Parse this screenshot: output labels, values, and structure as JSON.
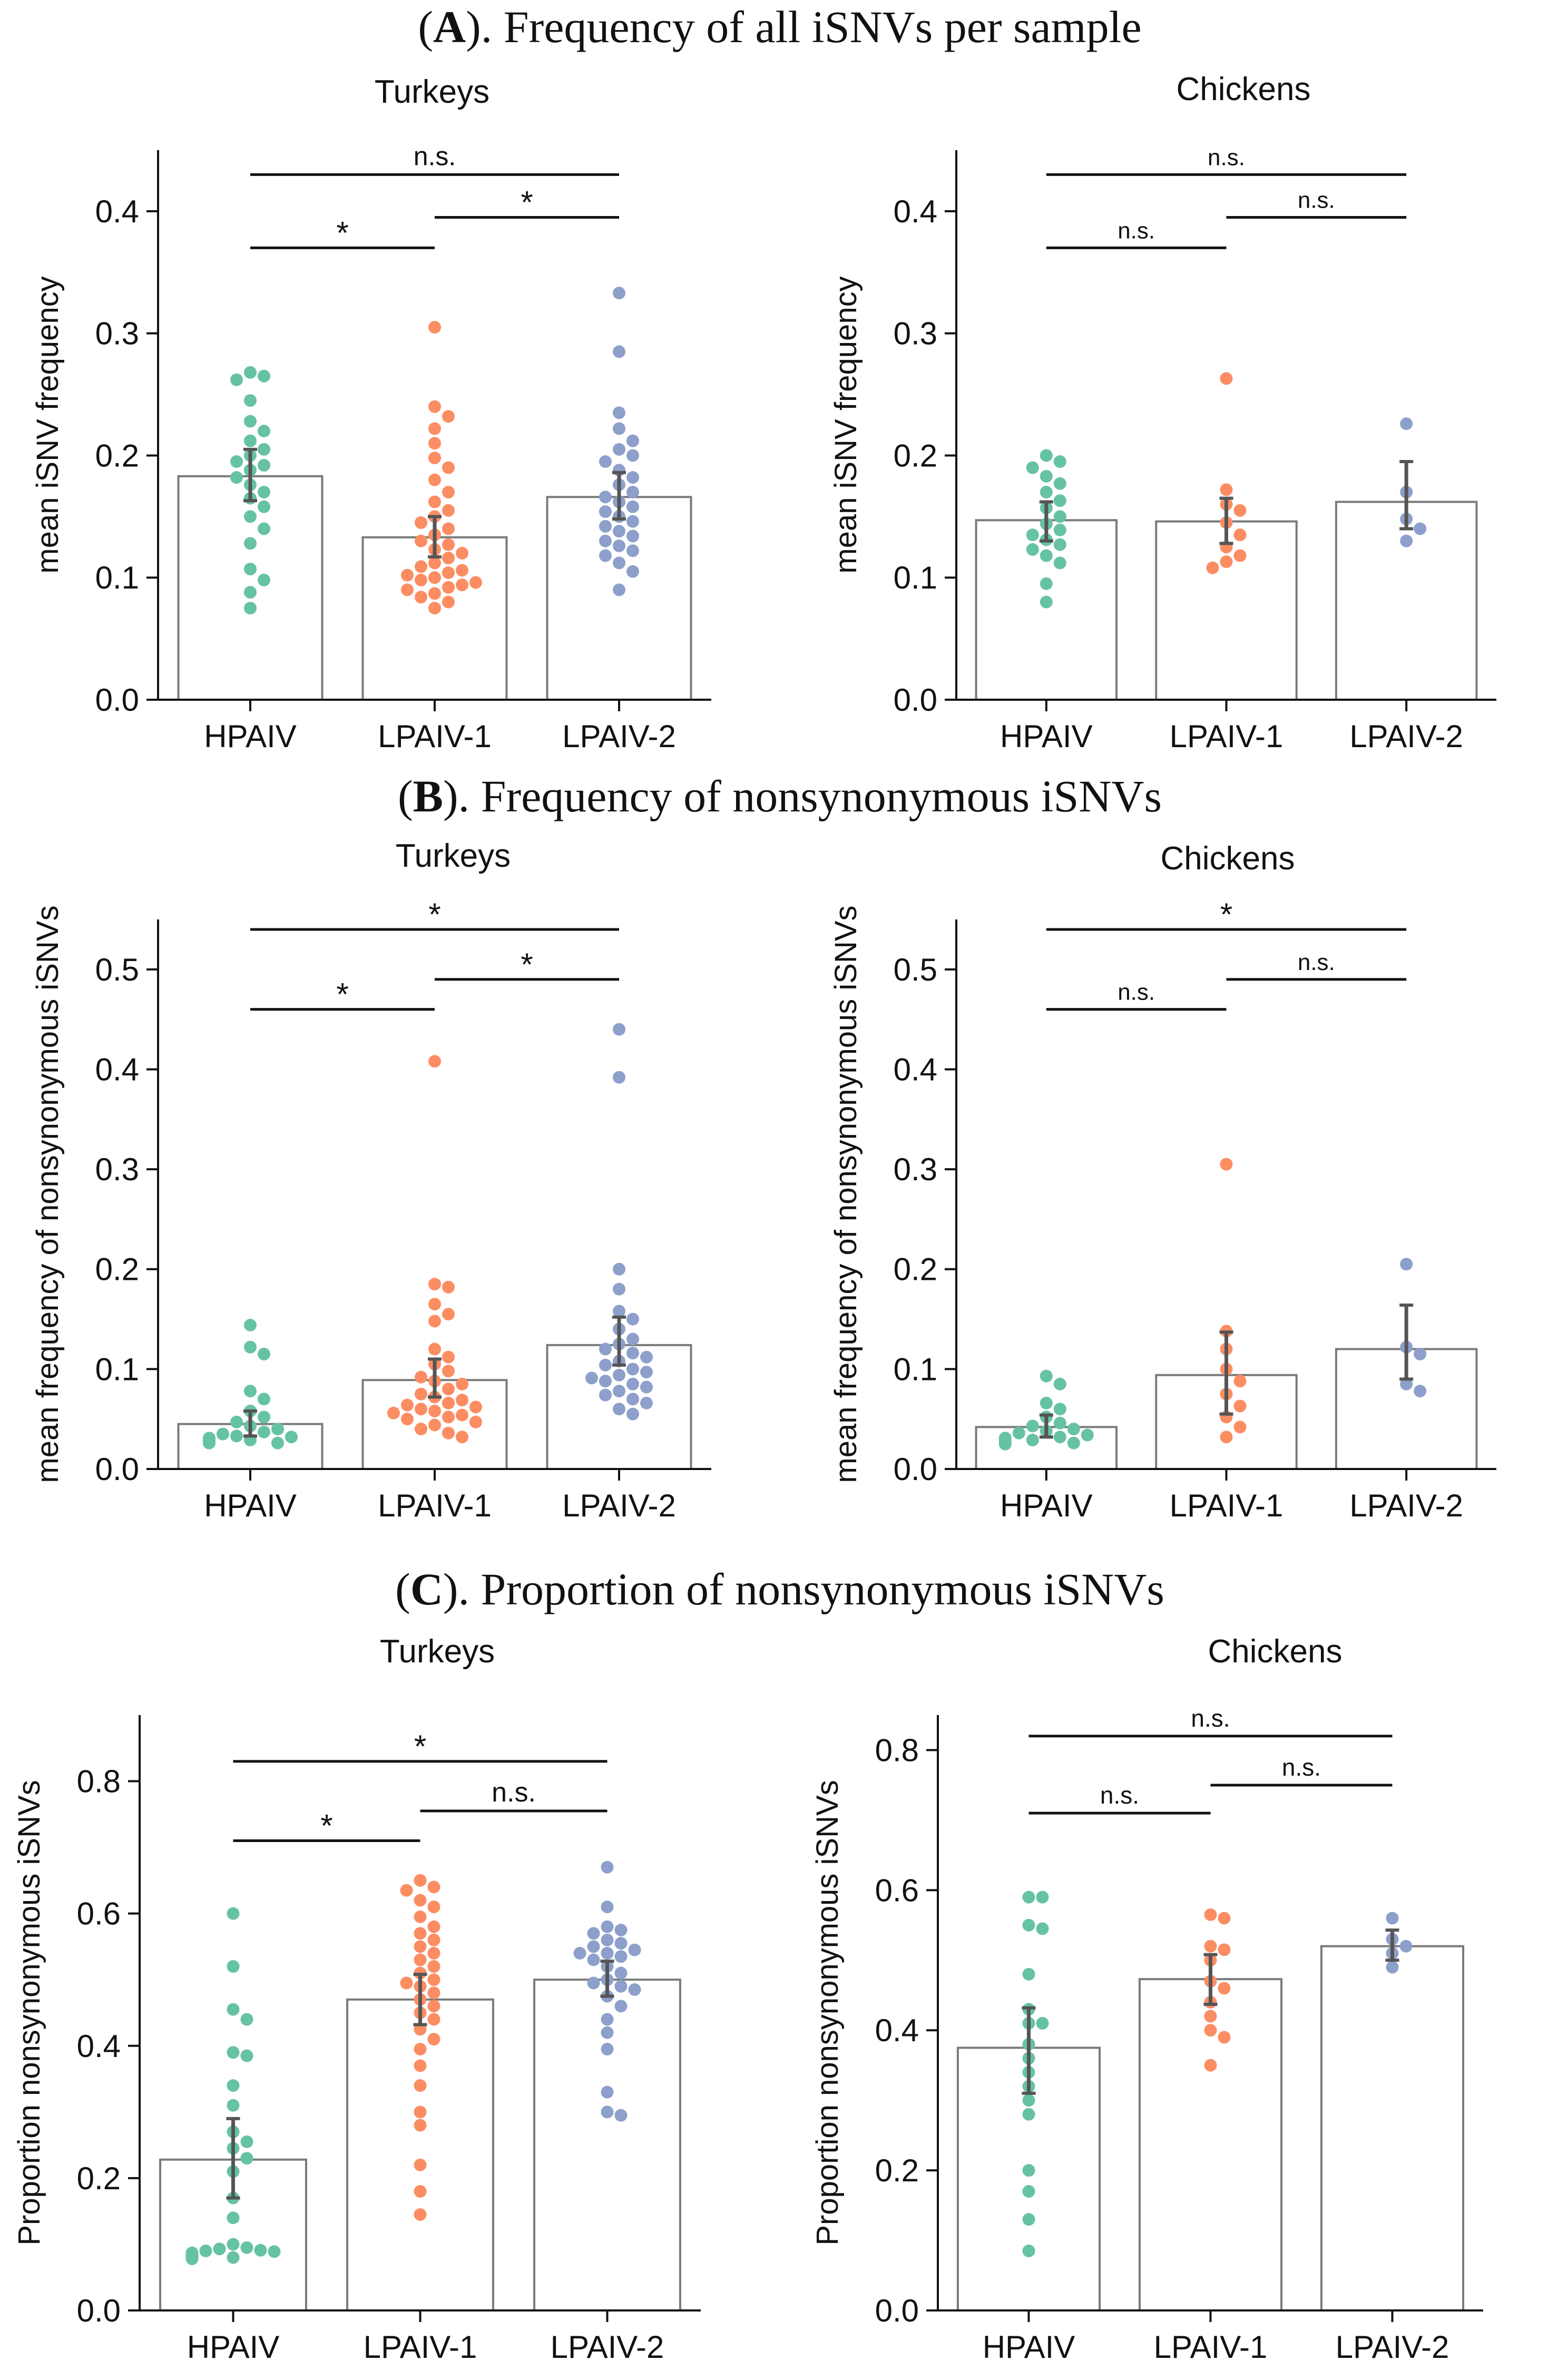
{
  "colors": {
    "HPAIV": "#66c2a5",
    "LPAIV-1": "#fc8d62",
    "LPAIV-2": "#8da0cb",
    "bar_edge": "#7a7a7a",
    "errorbar": "#555555",
    "axis": "#111111"
  },
  "sections": [
    {
      "letter": "A",
      "text": "). Frequency of all iSNVs per sample"
    },
    {
      "letter": "B",
      "text": "). Frequency of nonsynonymous iSNVs"
    },
    {
      "letter": "C",
      "text": "). Proportion of nonsynonymous iSNVs"
    }
  ],
  "chart_data": [
    {
      "type": "bar",
      "section": "A",
      "title": "Turkeys",
      "ylabel": "mean iSNV frequency",
      "ylim": [
        0,
        0.45
      ],
      "yticks": [
        0.0,
        0.1,
        0.2,
        0.3,
        0.4
      ],
      "tick_decimals": 1,
      "categories": [
        "HPAIV",
        "LPAIV-1",
        "LPAIV-2"
      ],
      "values": [
        0.183,
        0.133,
        0.166
      ],
      "errors": [
        [
          0.163,
          0.205
        ],
        [
          0.117,
          0.15
        ],
        [
          0.148,
          0.186
        ]
      ],
      "points": [
        [
          0.268,
          0.265,
          0.262,
          0.245,
          0.228,
          0.22,
          0.212,
          0.205,
          0.2,
          0.195,
          0.192,
          0.188,
          0.182,
          0.176,
          0.17,
          0.165,
          0.158,
          0.15,
          0.14,
          0.128,
          0.107,
          0.098,
          0.088,
          0.075
        ],
        [
          0.305,
          0.24,
          0.232,
          0.222,
          0.21,
          0.198,
          0.19,
          0.18,
          0.17,
          0.162,
          0.155,
          0.15,
          0.145,
          0.14,
          0.135,
          0.13,
          0.127,
          0.123,
          0.12,
          0.116,
          0.112,
          0.109,
          0.106,
          0.104,
          0.102,
          0.1,
          0.098,
          0.096,
          0.094,
          0.092,
          0.09,
          0.087,
          0.084,
          0.08,
          0.075
        ],
        [
          0.333,
          0.285,
          0.235,
          0.222,
          0.212,
          0.205,
          0.2,
          0.195,
          0.188,
          0.182,
          0.176,
          0.17,
          0.166,
          0.162,
          0.158,
          0.154,
          0.15,
          0.146,
          0.142,
          0.138,
          0.134,
          0.13,
          0.126,
          0.122,
          0.118,
          0.112,
          0.105,
          0.09
        ]
      ],
      "significance": [
        {
          "from": 0,
          "to": 2,
          "label": "n.s.",
          "y": 0.43
        },
        {
          "from": 1,
          "to": 2,
          "label": "*",
          "y": 0.395
        },
        {
          "from": 0,
          "to": 1,
          "label": "*",
          "y": 0.37
        }
      ]
    },
    {
      "type": "bar",
      "section": "A",
      "title": "Chickens",
      "ylabel": "mean iSNV frequency",
      "ylim": [
        0,
        0.45
      ],
      "yticks": [
        0.0,
        0.1,
        0.2,
        0.3,
        0.4
      ],
      "tick_decimals": 1,
      "categories": [
        "HPAIV",
        "LPAIV-1",
        "LPAIV-2"
      ],
      "values": [
        0.147,
        0.146,
        0.162
      ],
      "errors": [
        [
          0.13,
          0.162
        ],
        [
          0.128,
          0.165
        ],
        [
          0.14,
          0.195
        ]
      ],
      "points": [
        [
          0.2,
          0.195,
          0.19,
          0.183,
          0.177,
          0.17,
          0.163,
          0.157,
          0.15,
          0.144,
          0.139,
          0.135,
          0.131,
          0.127,
          0.123,
          0.118,
          0.112,
          0.095,
          0.08
        ],
        [
          0.263,
          0.172,
          0.16,
          0.155,
          0.145,
          0.135,
          0.125,
          0.118,
          0.113,
          0.108
        ],
        [
          0.226,
          0.17,
          0.148,
          0.14,
          0.13
        ]
      ],
      "significance": [
        {
          "from": 0,
          "to": 2,
          "label": "n.s.",
          "y": 0.43
        },
        {
          "from": 1,
          "to": 2,
          "label": "n.s.",
          "y": 0.395
        },
        {
          "from": 0,
          "to": 1,
          "label": "n.s.",
          "y": 0.37
        }
      ]
    },
    {
      "type": "bar",
      "section": "B",
      "title": "Turkeys",
      "ylabel": "mean frequency of nonsynonymous iSNVs",
      "ylim": [
        0,
        0.55
      ],
      "yticks": [
        0.0,
        0.1,
        0.2,
        0.3,
        0.4,
        0.5
      ],
      "tick_decimals": 1,
      "categories": [
        "HPAIV",
        "LPAIV-1",
        "LPAIV-2"
      ],
      "values": [
        0.045,
        0.089,
        0.124
      ],
      "errors": [
        [
          0.033,
          0.058
        ],
        [
          0.072,
          0.11
        ],
        [
          0.104,
          0.152
        ]
      ],
      "points": [
        [
          0.144,
          0.122,
          0.115,
          0.078,
          0.07,
          0.058,
          0.052,
          0.047,
          0.043,
          0.04,
          0.037,
          0.035,
          0.033,
          0.032,
          0.031,
          0.03,
          0.029,
          0.029,
          0.028,
          0.028,
          0.027,
          0.027,
          0.026,
          0.026
        ],
        [
          0.408,
          0.185,
          0.182,
          0.165,
          0.155,
          0.148,
          0.12,
          0.112,
          0.105,
          0.098,
          0.092,
          0.088,
          0.085,
          0.08,
          0.075,
          0.072,
          0.069,
          0.066,
          0.064,
          0.062,
          0.06,
          0.058,
          0.056,
          0.054,
          0.052,
          0.05,
          0.047,
          0.044,
          0.04,
          0.036,
          0.032
        ],
        [
          0.44,
          0.392,
          0.2,
          0.18,
          0.158,
          0.15,
          0.14,
          0.13,
          0.125,
          0.12,
          0.116,
          0.112,
          0.108,
          0.104,
          0.1,
          0.097,
          0.094,
          0.091,
          0.088,
          0.085,
          0.082,
          0.078,
          0.074,
          0.07,
          0.066,
          0.06,
          0.055
        ]
      ],
      "significance": [
        {
          "from": 0,
          "to": 2,
          "label": "*",
          "y": 0.54
        },
        {
          "from": 1,
          "to": 2,
          "label": "*",
          "y": 0.49
        },
        {
          "from": 0,
          "to": 1,
          "label": "*",
          "y": 0.46
        }
      ]
    },
    {
      "type": "bar",
      "section": "B",
      "title": "Chickens",
      "ylabel": "mean frequency of nonsynonymous iSNVs",
      "ylim": [
        0,
        0.55
      ],
      "yticks": [
        0.0,
        0.1,
        0.2,
        0.3,
        0.4,
        0.5
      ],
      "tick_decimals": 1,
      "categories": [
        "HPAIV",
        "LPAIV-1",
        "LPAIV-2"
      ],
      "values": [
        0.042,
        0.094,
        0.12
      ],
      "errors": [
        [
          0.032,
          0.054
        ],
        [
          0.055,
          0.137
        ],
        [
          0.09,
          0.164
        ]
      ],
      "points": [
        [
          0.093,
          0.085,
          0.066,
          0.06,
          0.052,
          0.046,
          0.043,
          0.04,
          0.038,
          0.036,
          0.034,
          0.032,
          0.031,
          0.03,
          0.029,
          0.028,
          0.027,
          0.026,
          0.025
        ],
        [
          0.305,
          0.138,
          0.12,
          0.1,
          0.088,
          0.075,
          0.063,
          0.052,
          0.042,
          0.032
        ],
        [
          0.205,
          0.122,
          0.115,
          0.085,
          0.078
        ]
      ],
      "significance": [
        {
          "from": 0,
          "to": 2,
          "label": "*",
          "y": 0.54
        },
        {
          "from": 1,
          "to": 2,
          "label": "n.s.",
          "y": 0.49
        },
        {
          "from": 0,
          "to": 1,
          "label": "n.s.",
          "y": 0.46
        }
      ]
    },
    {
      "type": "bar",
      "section": "C",
      "title": "Turkeys",
      "ylabel": "Proportion nonsynonymous iSNVs",
      "ylim": [
        0,
        0.9
      ],
      "yticks": [
        0.0,
        0.2,
        0.4,
        0.6,
        0.8
      ],
      "tick_decimals": 1,
      "categories": [
        "HPAIV",
        "LPAIV-1",
        "LPAIV-2"
      ],
      "values": [
        0.228,
        0.47,
        0.5
      ],
      "errors": [
        [
          0.17,
          0.29
        ],
        [
          0.432,
          0.508
        ],
        [
          0.475,
          0.528
        ]
      ],
      "points": [
        [
          0.6,
          0.52,
          0.455,
          0.44,
          0.39,
          0.385,
          0.34,
          0.31,
          0.27,
          0.255,
          0.245,
          0.23,
          0.21,
          0.17,
          0.14,
          0.1,
          0.095,
          0.093,
          0.091,
          0.09,
          0.089,
          0.087,
          0.085,
          0.082,
          0.08,
          0.078
        ],
        [
          0.65,
          0.64,
          0.635,
          0.62,
          0.61,
          0.595,
          0.58,
          0.57,
          0.56,
          0.55,
          0.54,
          0.53,
          0.52,
          0.51,
          0.5,
          0.495,
          0.49,
          0.48,
          0.47,
          0.46,
          0.45,
          0.44,
          0.425,
          0.41,
          0.395,
          0.37,
          0.34,
          0.3,
          0.28,
          0.22,
          0.18,
          0.145
        ],
        [
          0.67,
          0.61,
          0.58,
          0.575,
          0.57,
          0.56,
          0.555,
          0.55,
          0.545,
          0.54,
          0.54,
          0.535,
          0.53,
          0.52,
          0.51,
          0.5,
          0.495,
          0.49,
          0.485,
          0.475,
          0.46,
          0.44,
          0.42,
          0.395,
          0.33,
          0.3,
          0.295
        ]
      ],
      "significance": [
        {
          "from": 0,
          "to": 2,
          "label": "*",
          "y": 0.83
        },
        {
          "from": 1,
          "to": 2,
          "label": "n.s.",
          "y": 0.755
        },
        {
          "from": 0,
          "to": 1,
          "label": "*",
          "y": 0.71
        }
      ]
    },
    {
      "type": "bar",
      "section": "C",
      "title": "Chickens",
      "ylabel": "Proportion nonsynonymous iSNVs",
      "ylim": [
        0,
        0.85
      ],
      "yticks": [
        0.0,
        0.2,
        0.4,
        0.6,
        0.8
      ],
      "tick_decimals": 1,
      "categories": [
        "HPAIV",
        "LPAIV-1",
        "LPAIV-2"
      ],
      "values": [
        0.375,
        0.473,
        0.52
      ],
      "errors": [
        [
          0.31,
          0.432
        ],
        [
          0.437,
          0.508
        ],
        [
          0.5,
          0.543
        ]
      ],
      "points": [
        [
          0.59,
          0.59,
          0.55,
          0.545,
          0.48,
          0.43,
          0.41,
          0.41,
          0.38,
          0.36,
          0.34,
          0.32,
          0.3,
          0.28,
          0.2,
          0.17,
          0.13,
          0.085
        ],
        [
          0.565,
          0.56,
          0.52,
          0.515,
          0.5,
          0.47,
          0.46,
          0.44,
          0.42,
          0.4,
          0.39,
          0.35
        ],
        [
          0.56,
          0.53,
          0.52,
          0.51,
          0.49
        ]
      ],
      "significance": [
        {
          "from": 0,
          "to": 2,
          "label": "n.s.",
          "y": 0.82
        },
        {
          "from": 1,
          "to": 2,
          "label": "n.s.",
          "y": 0.75
        },
        {
          "from": 0,
          "to": 1,
          "label": "n.s.",
          "y": 0.71
        }
      ]
    }
  ]
}
